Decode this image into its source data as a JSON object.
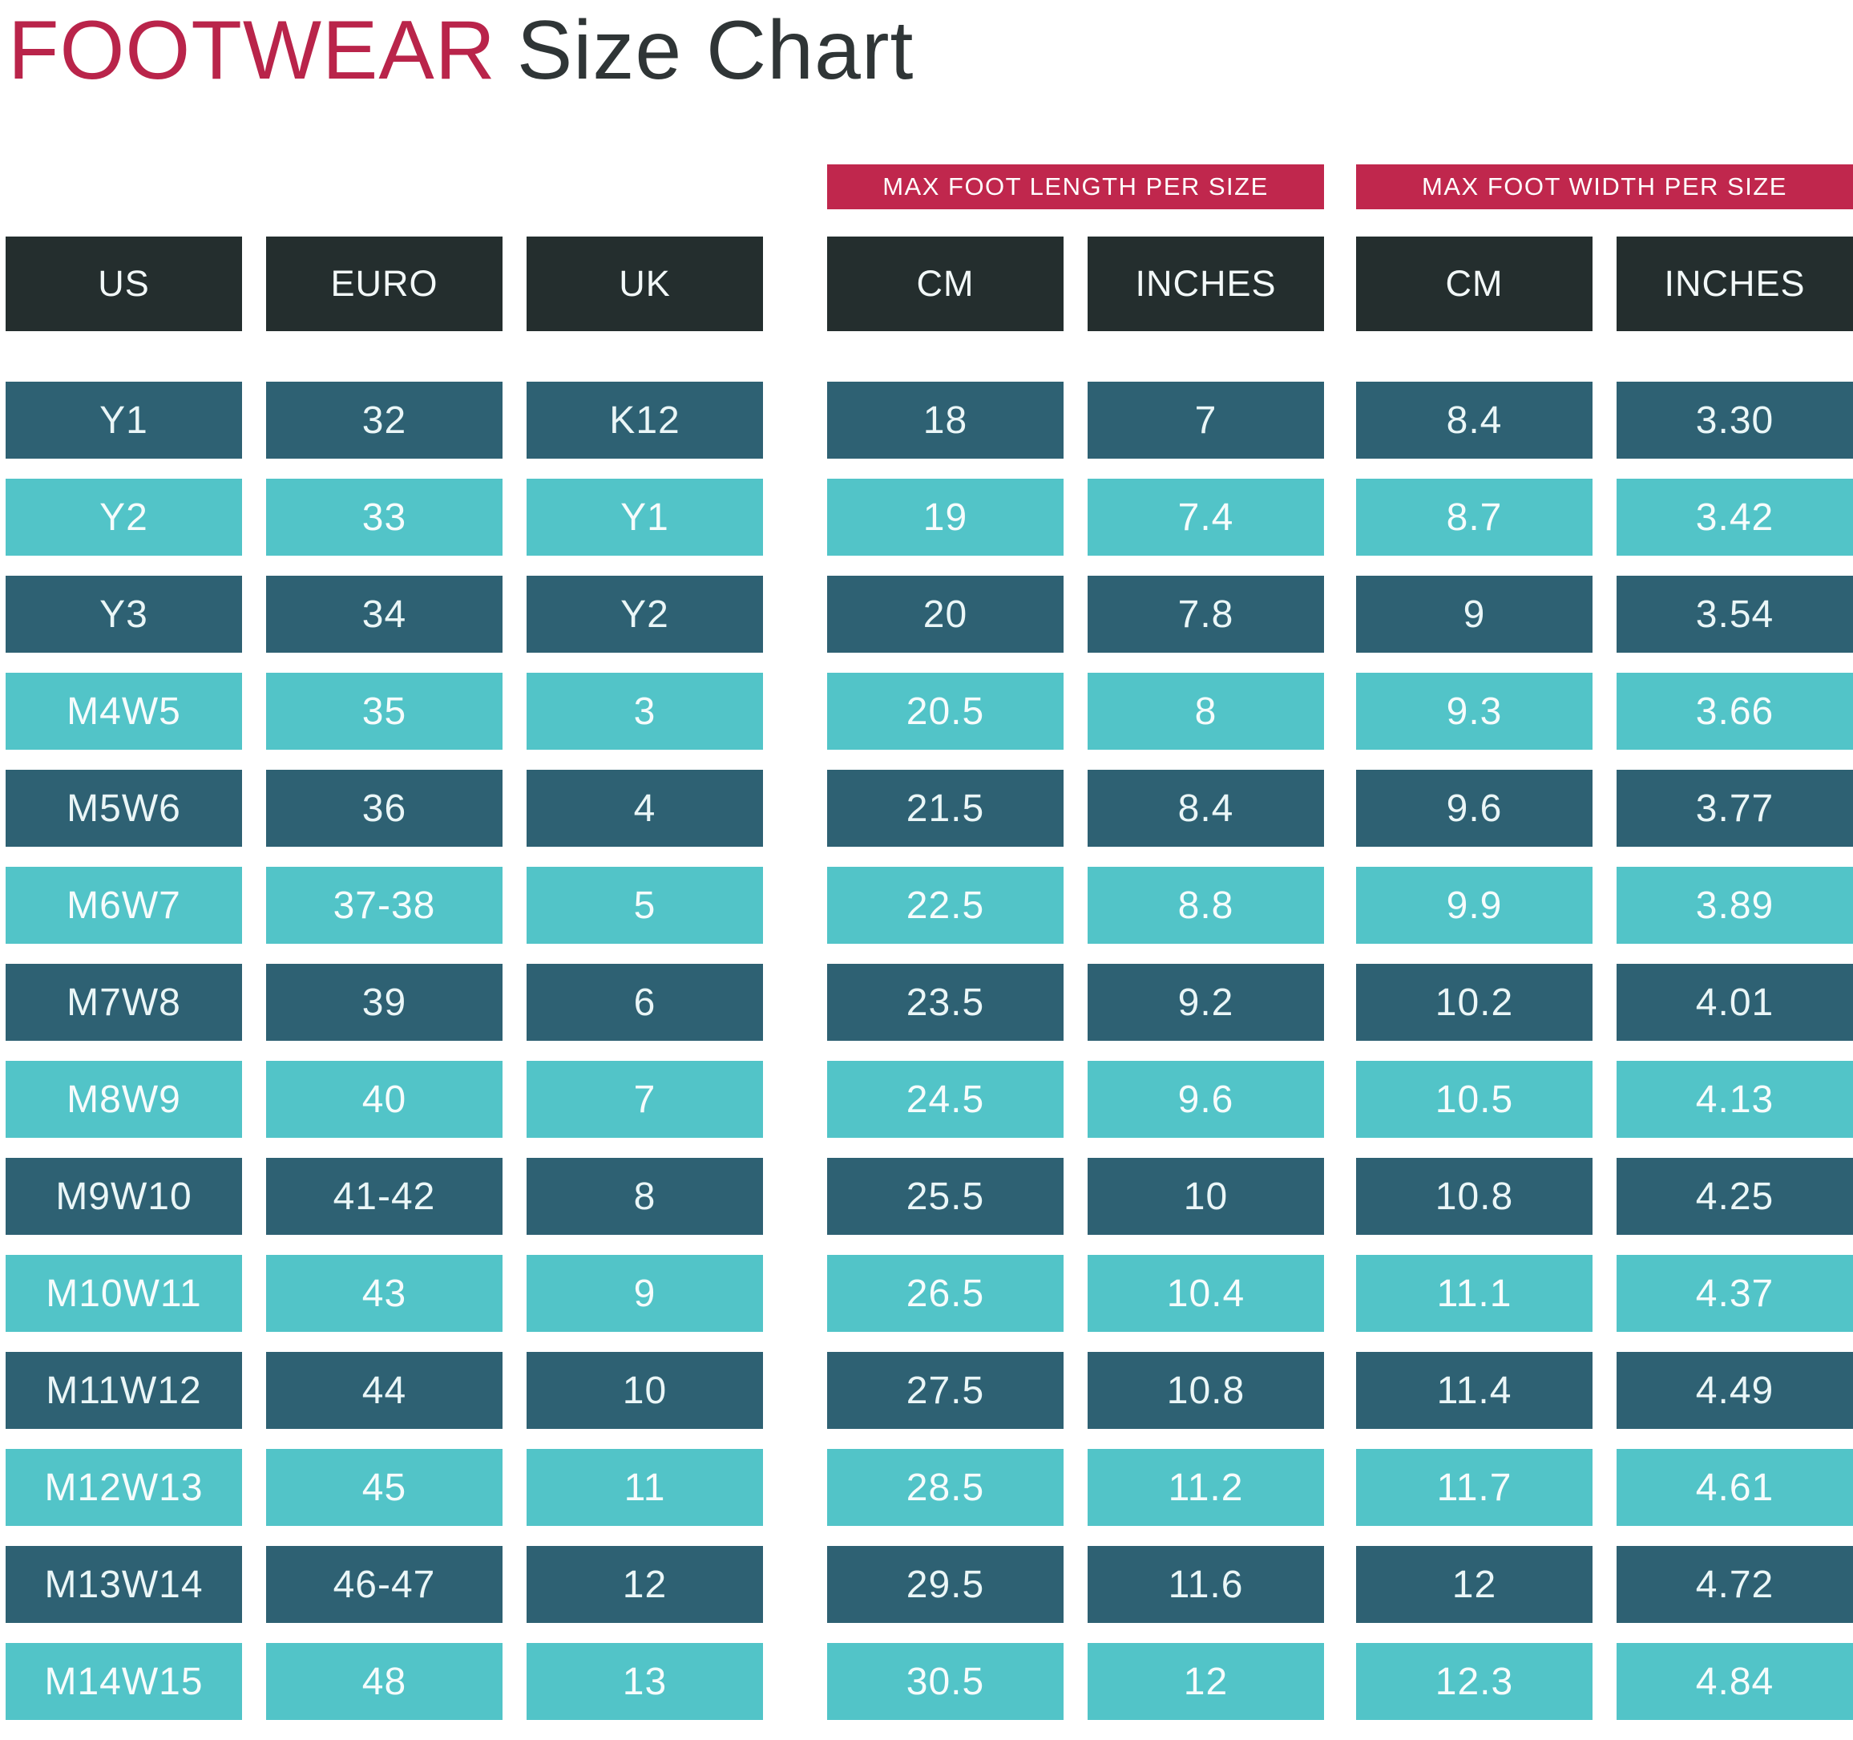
{
  "title": {
    "brand": "FOOTWEAR",
    "rest": "Size Chart"
  },
  "banners": {
    "length_label": "MAX FOOT LENGTH PER SIZE",
    "width_label": "MAX FOOT WIDTH PER SIZE"
  },
  "chart_data": {
    "type": "table",
    "title": "FOOTWEAR Size Chart",
    "column_groups": [
      {
        "label": "MAX FOOT LENGTH PER SIZE",
        "columns": [
          "CM",
          "INCHES"
        ]
      },
      {
        "label": "MAX FOOT WIDTH PER SIZE",
        "columns": [
          "CM",
          "INCHES"
        ]
      }
    ],
    "columns": [
      "US",
      "EURO",
      "UK",
      "CM",
      "INCHES",
      "CM",
      "INCHES"
    ],
    "rows": [
      [
        "Y1",
        "32",
        "K12",
        "18",
        "7",
        "8.4",
        "3.30"
      ],
      [
        "Y2",
        "33",
        "Y1",
        "19",
        "7.4",
        "8.7",
        "3.42"
      ],
      [
        "Y3",
        "34",
        "Y2",
        "20",
        "7.8",
        "9",
        "3.54"
      ],
      [
        "M4W5",
        "35",
        "3",
        "20.5",
        "8",
        "9.3",
        "3.66"
      ],
      [
        "M5W6",
        "36",
        "4",
        "21.5",
        "8.4",
        "9.6",
        "3.77"
      ],
      [
        "M6W7",
        "37-38",
        "5",
        "22.5",
        "8.8",
        "9.9",
        "3.89"
      ],
      [
        "M7W8",
        "39",
        "6",
        "23.5",
        "9.2",
        "10.2",
        "4.01"
      ],
      [
        "M8W9",
        "40",
        "7",
        "24.5",
        "9.6",
        "10.5",
        "4.13"
      ],
      [
        "M9W10",
        "41-42",
        "8",
        "25.5",
        "10",
        "10.8",
        "4.25"
      ],
      [
        "M10W11",
        "43",
        "9",
        "26.5",
        "10.4",
        "11.1",
        "4.37"
      ],
      [
        "M11W12",
        "44",
        "10",
        "27.5",
        "10.8",
        "11.4",
        "4.49"
      ],
      [
        "M12W13",
        "45",
        "11",
        "28.5",
        "11.2",
        "11.7",
        "4.61"
      ],
      [
        "M13W14",
        "46-47",
        "12",
        "29.5",
        "11.6",
        "12",
        "4.72"
      ],
      [
        "M14W15",
        "48",
        "13",
        "30.5",
        "12",
        "12.3",
        "4.84"
      ]
    ],
    "row_stripe_pattern": [
      "dark",
      "light"
    ],
    "legend_position": "none",
    "grid": false
  },
  "colors": {
    "accent": "#c0274d",
    "header_bg": "#242e2e",
    "row_dark": "#2e6173",
    "row_light": "#52c4c8",
    "row_text": "#eaf6f7",
    "banner_text": "#ffffff",
    "title_brand": "#b9244a",
    "title_rest": "#2f3536"
  }
}
